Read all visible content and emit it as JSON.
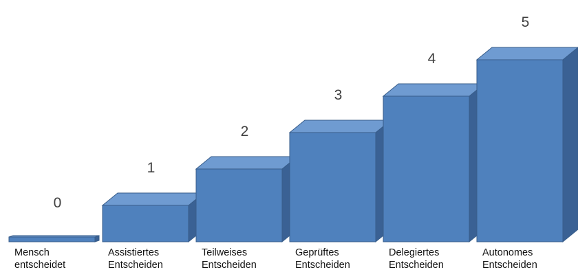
{
  "chart_data": {
    "type": "bar",
    "style": "3d-staircase",
    "categories": [
      [
        "Mensch",
        "entscheidet"
      ],
      [
        "Assistiertes",
        "Entscheiden"
      ],
      [
        "Teilweises",
        "Entscheiden"
      ],
      [
        "Geprüftes",
        "Entscheiden"
      ],
      [
        "Delegiertes",
        "Entscheiden"
      ],
      [
        "Autonomes",
        "Entscheiden"
      ]
    ],
    "values": [
      0,
      1,
      2,
      3,
      4,
      5
    ],
    "labels": [
      "0",
      "1",
      "2",
      "3",
      "4",
      "5"
    ],
    "ylim": [
      0,
      5
    ],
    "colors": {
      "front": "#4f81bd",
      "top": "#6f9bd1",
      "side": "#3a6194",
      "border": "#385d8a"
    },
    "grid": false,
    "legend": "none"
  }
}
